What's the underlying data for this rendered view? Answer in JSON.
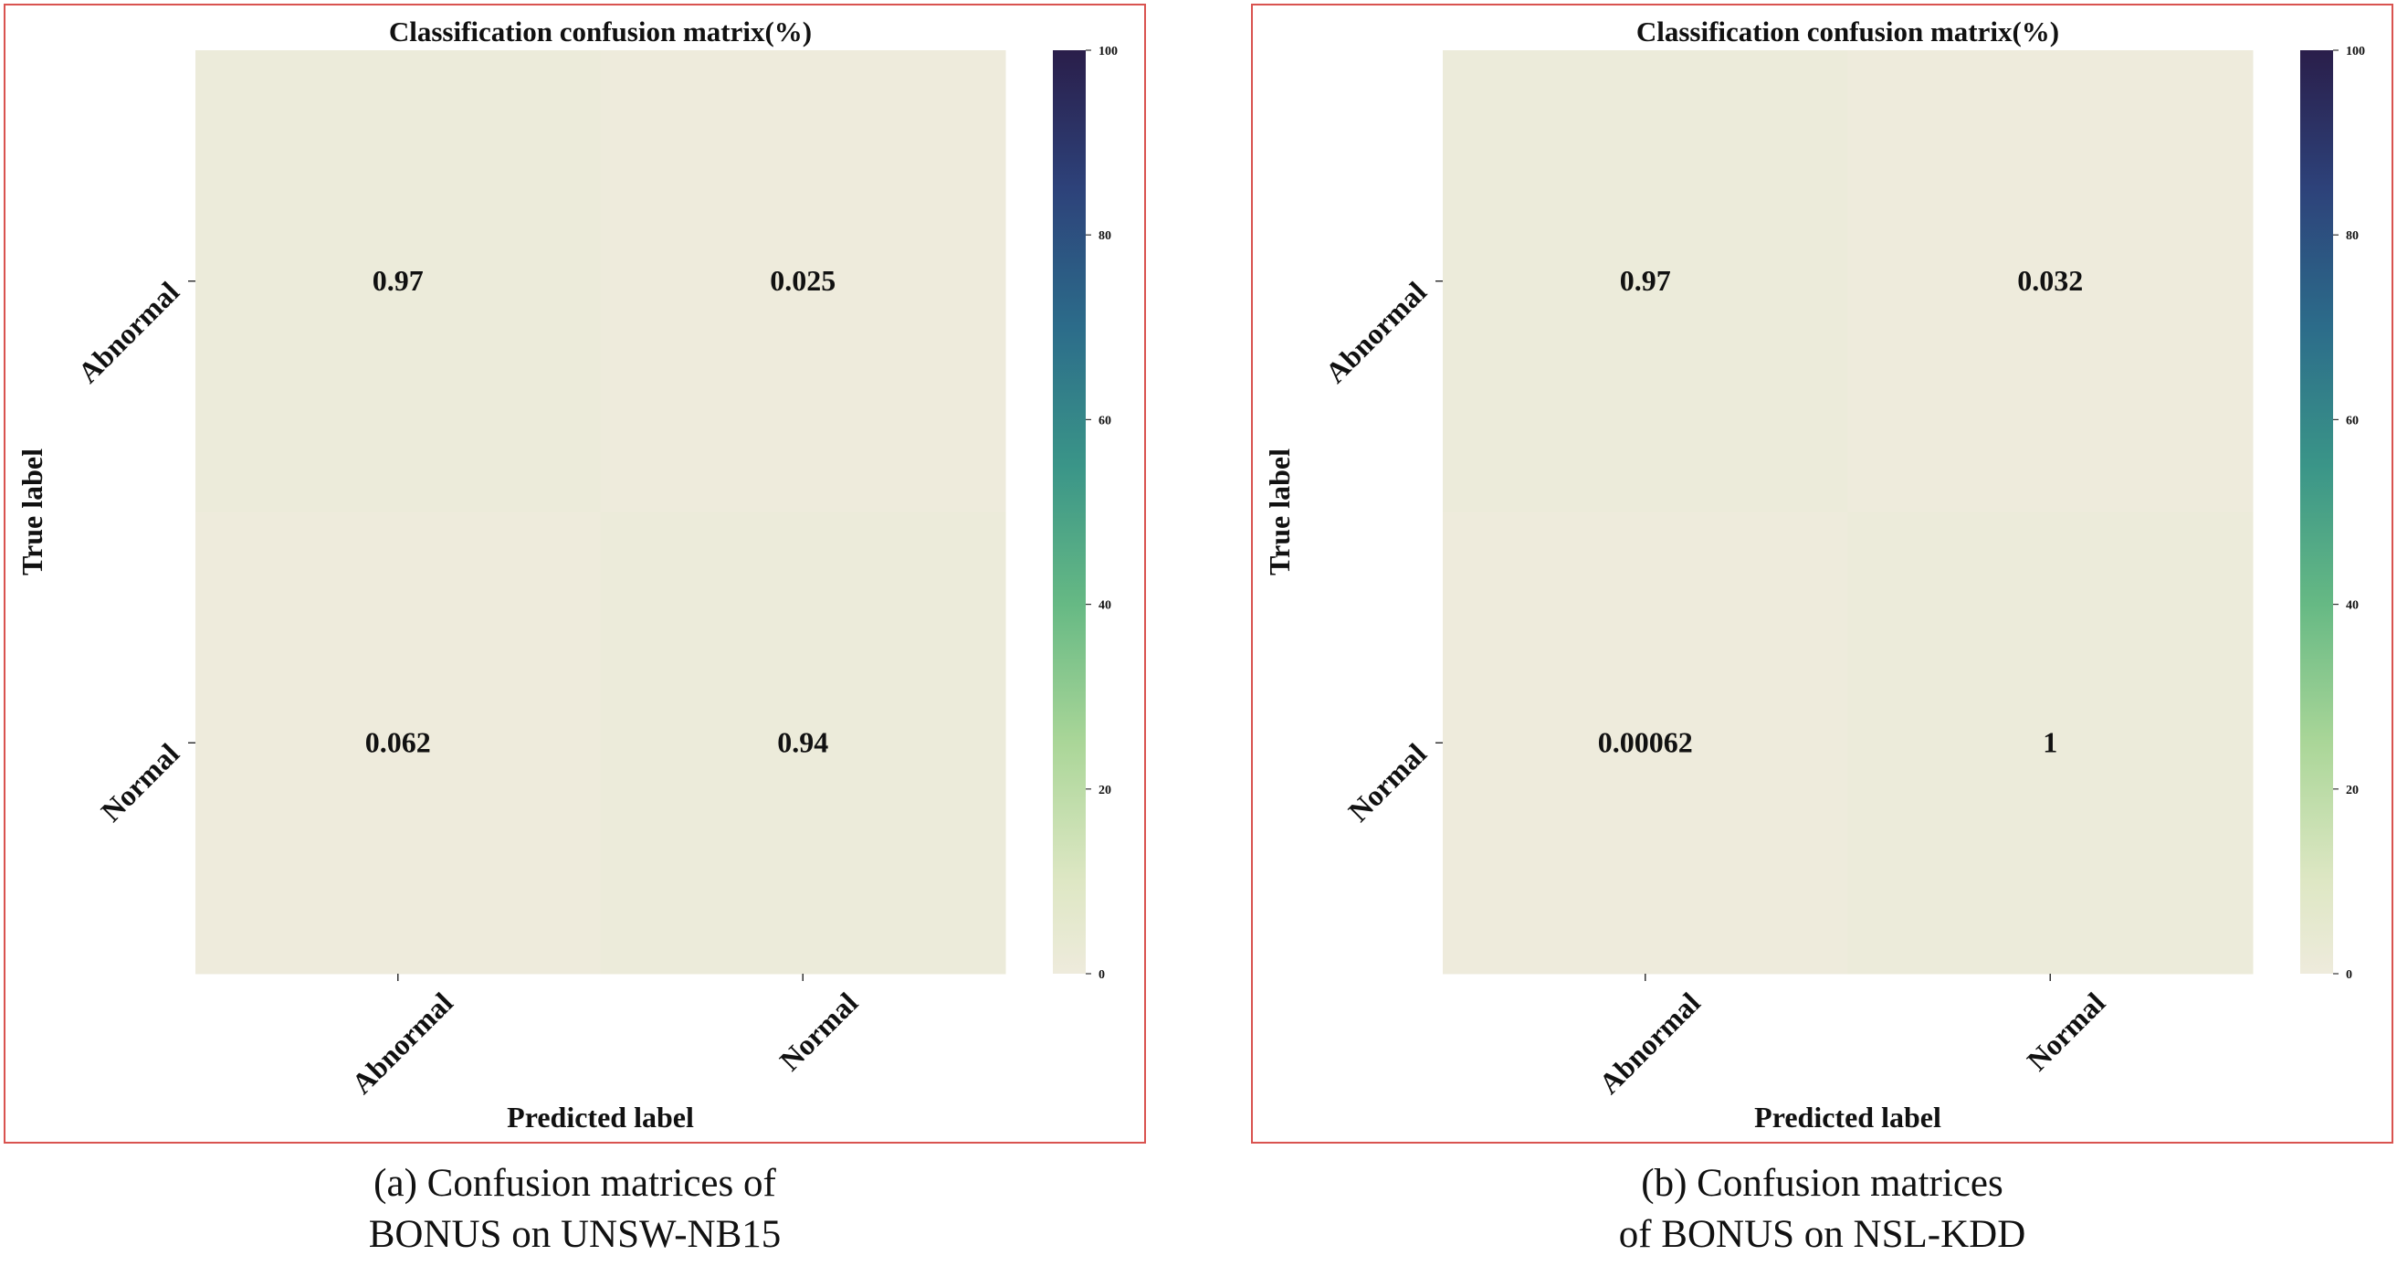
{
  "chart_data": [
    {
      "type": "heatmap",
      "title": "Classification confusion matrix(%)",
      "xlabel": "Predicted label",
      "ylabel": "True label",
      "x_categories": [
        "Abnormal",
        "Normal"
      ],
      "y_categories": [
        "Abnormal",
        "Normal"
      ],
      "values": [
        [
          0.97,
          0.025
        ],
        [
          0.062,
          0.94
        ]
      ],
      "cell_labels": [
        [
          "0.97",
          "0.025"
        ],
        [
          "0.062",
          "0.94"
        ]
      ],
      "colorbar": {
        "min": 0,
        "max": 100,
        "ticks": [
          "0",
          "20",
          "40",
          "60",
          "80",
          "100"
        ]
      },
      "caption": {
        "tag": "(a)",
        "line1": "Confusion matrices of",
        "line2": "BONUS on UNSW-NB15"
      }
    },
    {
      "type": "heatmap",
      "title": "Classification confusion matrix(%)",
      "xlabel": "Predicted label",
      "ylabel": "True label",
      "x_categories": [
        "Abnormal",
        "Normal"
      ],
      "y_categories": [
        "Abnormal",
        "Normal"
      ],
      "values": [
        [
          0.97,
          0.032
        ],
        [
          0.00062,
          1
        ]
      ],
      "cell_labels": [
        [
          "0.97",
          "0.032"
        ],
        [
          "0.00062",
          "1"
        ]
      ],
      "colorbar": {
        "min": 0,
        "max": 100,
        "ticks": [
          "0",
          "20",
          "40",
          "60",
          "80",
          "100"
        ]
      },
      "caption": {
        "tag": "(b)",
        "line1": "Confusion matrices",
        "line2": "of BONUS on NSL-KDD"
      }
    }
  ],
  "colors": {
    "panel_border": "#d9534f",
    "cmap_low": "#eeebdc",
    "cmap_high": "#2a1e4a"
  }
}
